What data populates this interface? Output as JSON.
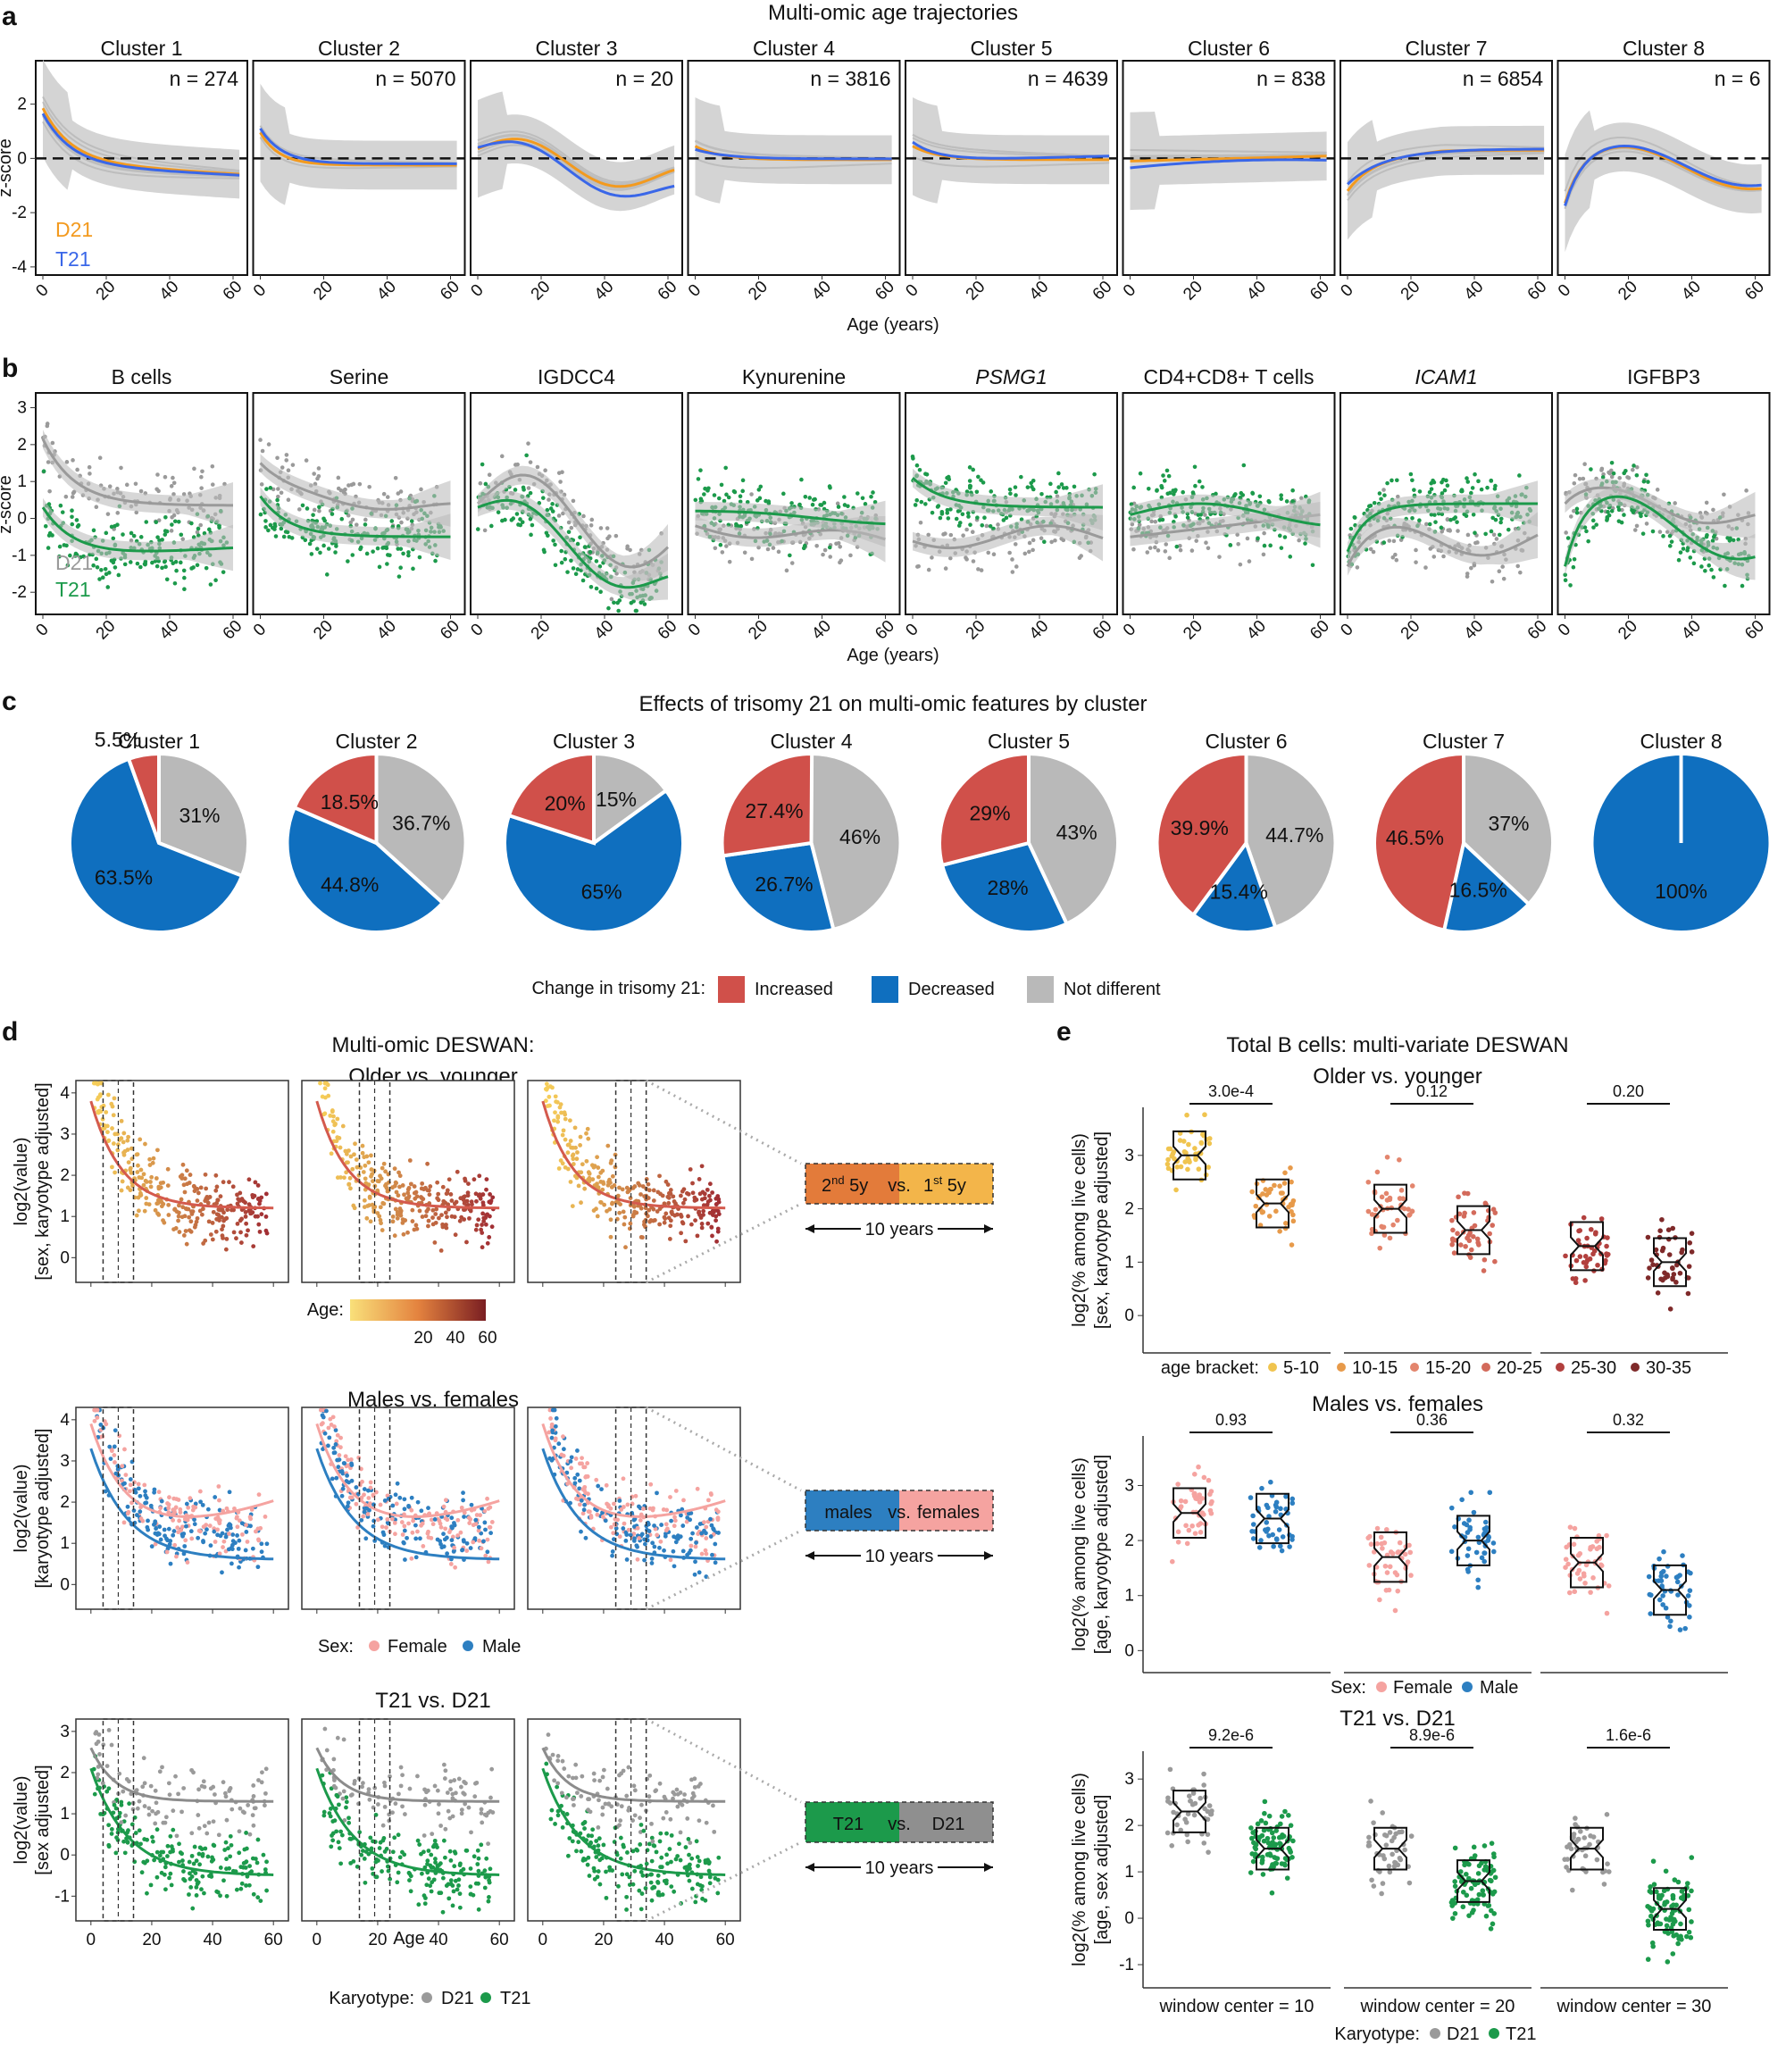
{
  "figure": {
    "panel_letters": [
      "a",
      "b",
      "c",
      "d",
      "e"
    ],
    "colors": {
      "d21": "#f39a1e",
      "t21": "#3a67e8",
      "grey": "#9a9a9a",
      "green": "#1c9a4b",
      "increased": "#d0504a",
      "decreased": "#0f6fbf",
      "not_different": "#b9b9b9",
      "female": "#f5a3a0",
      "male": "#2d7fc1"
    }
  },
  "panel_a": {
    "title": "Multi-omic age trajectories",
    "ylabel": "z-score",
    "xlabel": "Age (years)",
    "legend": [
      "D21",
      "T21"
    ],
    "yticks": [
      "2",
      "0",
      "-2",
      "-4"
    ],
    "xticks": [
      "0",
      "20",
      "40",
      "60"
    ],
    "clusters": [
      {
        "name": "Cluster 1",
        "n": "n = 274"
      },
      {
        "name": "Cluster 2",
        "n": "n = 5070"
      },
      {
        "name": "Cluster 3",
        "n": "n = 20"
      },
      {
        "name": "Cluster 4",
        "n": "n = 3816"
      },
      {
        "name": "Cluster 5",
        "n": "n = 4639"
      },
      {
        "name": "Cluster 6",
        "n": "n = 838"
      },
      {
        "name": "Cluster 7",
        "n": "n = 6854"
      },
      {
        "name": "Cluster 8",
        "n": "n = 6"
      }
    ]
  },
  "panel_b": {
    "ylabel": "z-score",
    "xlabel": "Age (years)",
    "legend": [
      "D21",
      "T21"
    ],
    "yticks": [
      "3",
      "2",
      "1",
      "0",
      "-1",
      "-2"
    ],
    "xticks": [
      "0",
      "20",
      "40",
      "60"
    ],
    "features": [
      "B cells",
      "Serine",
      "IGDCC4",
      "Kynurenine",
      "PSMG1",
      "CD4+CD8+ T cells",
      "ICAM1",
      "IGFBP3"
    ]
  },
  "panel_c": {
    "title": "Effects of trisomy 21 on multi-omic features by cluster",
    "legend_title": "Change in trisomy 21:",
    "legend": [
      "Increased",
      "Decreased",
      "Not different"
    ],
    "pies": [
      {
        "name": "Cluster 1",
        "increased": 5.5,
        "decreased": 63.5,
        "not_different": 31,
        "labels": [
          "5.5%",
          "63.5%",
          "31%"
        ]
      },
      {
        "name": "Cluster 2",
        "increased": 18.5,
        "decreased": 44.8,
        "not_different": 36.7,
        "labels": [
          "18.5%",
          "44.8%",
          "36.7%"
        ]
      },
      {
        "name": "Cluster 3",
        "increased": 20,
        "decreased": 65,
        "not_different": 15,
        "labels": [
          "20%",
          "65%",
          "15%"
        ]
      },
      {
        "name": "Cluster 4",
        "increased": 27.4,
        "decreased": 26.7,
        "not_different": 46,
        "labels": [
          "27.4%",
          "26.7%",
          "46%"
        ]
      },
      {
        "name": "Cluster 5",
        "increased": 29,
        "decreased": 28,
        "not_different": 43,
        "labels": [
          "29%",
          "28%",
          "43%"
        ]
      },
      {
        "name": "Cluster 6",
        "increased": 39.9,
        "decreased": 15.4,
        "not_different": 44.7,
        "labels": [
          "39.9%",
          "15.4%",
          "44.7%"
        ]
      },
      {
        "name": "Cluster 7",
        "increased": 46.5,
        "decreased": 16.5,
        "not_different": 37,
        "labels": [
          "46.5%",
          "16.5%",
          "37%"
        ]
      },
      {
        "name": "Cluster 8",
        "increased": 0,
        "decreased": 100,
        "not_different": 0,
        "labels": [
          "",
          "100%",
          ""
        ]
      }
    ]
  },
  "panel_d": {
    "title_line1": "Multi-omic DESWAN:",
    "rows": [
      {
        "title": "Older vs. younger",
        "ylabel1": "log2(value)",
        "ylabel2": "[sex, karyotype adjusted]",
        "yticks": [
          "4",
          "3",
          "2",
          "1",
          "0"
        ],
        "legend_title": "Age:",
        "legend_ticks": [
          "20",
          "40",
          "60"
        ],
        "box": {
          "left": "2",
          "left_sup": "nd",
          "left_rest": " 5y",
          "vs": "vs.",
          "right": "1",
          "right_sup": "st",
          "right_rest": " 5y"
        },
        "span": "10 years"
      },
      {
        "title": "Males  vs. females",
        "ylabel1": "log2(value)",
        "ylabel2": "[karyotype adjusted]",
        "yticks": [
          "4",
          "3",
          "2",
          "1",
          "0"
        ],
        "legend_title": "Sex:",
        "legend": [
          "Female",
          "Male"
        ],
        "box": {
          "left": "males",
          "vs": "vs.",
          "right": "females"
        },
        "span": "10 years"
      },
      {
        "title": "T21  vs. D21",
        "ylabel1": "log2(value)",
        "ylabel2": "[sex adjusted]",
        "yticks": [
          "3",
          "2",
          "1",
          "0",
          "-1"
        ],
        "legend_title": "Karyotype:",
        "legend": [
          "D21",
          "T21"
        ],
        "box": {
          "left": "T21",
          "vs": "vs.",
          "right": "D21"
        },
        "span": "10 years"
      }
    ],
    "xticks": [
      "0",
      "20",
      "40",
      "60"
    ],
    "xlabel": "Age"
  },
  "panel_e": {
    "title": "Total B cells: multi-variate DESWAN",
    "rows": [
      {
        "title": "Older vs. younger",
        "ylabel1": "log2(% among live cells)",
        "ylabel2": "[sex, karyotype adjusted]",
        "yticks": [
          "3",
          "2",
          "1",
          "0"
        ],
        "pvals": [
          "3.0e-4",
          "0.12",
          "0.20"
        ],
        "legend_title": "age bracket:",
        "legend": [
          "5-10",
          "10-15",
          "15-20",
          "20-25",
          "25-30",
          "30-35"
        ]
      },
      {
        "title": "Males  vs. females",
        "ylabel1": "log2(% among live cells)",
        "ylabel2": "[age, karyotype adjusted]",
        "yticks": [
          "3",
          "2",
          "1",
          "0"
        ],
        "pvals": [
          "0.93",
          "0.36",
          "0.32"
        ],
        "legend_title": "Sex:",
        "legend": [
          "Female",
          "Male"
        ]
      },
      {
        "title": "T21  vs. D21",
        "ylabel1": "log2(% among live cells)",
        "ylabel2": "[age, sex adjusted]",
        "yticks": [
          "3",
          "2",
          "1",
          "0",
          "-1"
        ],
        "pvals": [
          "9.2e-6",
          "8.9e-6",
          "1.6e-6"
        ],
        "legend_title": "Karyotype:",
        "legend": [
          "D21",
          "T21"
        ],
        "windows": [
          "window center = 10",
          "window center = 20",
          "window center = 30"
        ]
      }
    ]
  }
}
